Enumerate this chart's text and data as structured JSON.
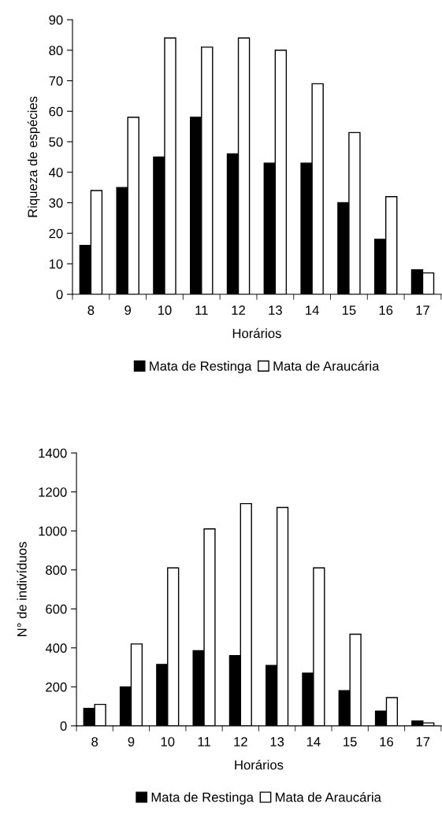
{
  "chart_data": [
    {
      "type": "bar",
      "xlabel": "Horários",
      "ylabel": "Riqueza de espécies",
      "categories": [
        "8",
        "9",
        "10",
        "11",
        "12",
        "13",
        "14",
        "15",
        "16",
        "17"
      ],
      "series": [
        {
          "name": "Mata de Restinga",
          "color": "#000000",
          "values": [
            16,
            35,
            45,
            58,
            46,
            43,
            43,
            30,
            18,
            8
          ]
        },
        {
          "name": "Mata de Araucária",
          "color": "#ffffff",
          "values": [
            34,
            58,
            84,
            81,
            84,
            80,
            69,
            53,
            32,
            7
          ]
        }
      ],
      "ylim": [
        0,
        90
      ],
      "yticks": [
        0,
        10,
        20,
        30,
        40,
        50,
        60,
        70,
        80,
        90
      ],
      "grid": false,
      "legend": "bottom"
    },
    {
      "type": "bar",
      "xlabel": "Horários",
      "ylabel": "N° de indivíduos",
      "categories": [
        "8",
        "9",
        "10",
        "11",
        "12",
        "13",
        "14",
        "15",
        "16",
        "17"
      ],
      "series": [
        {
          "name": "Mata de Restinga",
          "color": "#000000",
          "values": [
            90,
            200,
            315,
            385,
            360,
            310,
            270,
            180,
            75,
            25
          ]
        },
        {
          "name": "Mata de Araucária",
          "color": "#ffffff",
          "values": [
            110,
            420,
            810,
            1010,
            1140,
            1120,
            810,
            470,
            145,
            15
          ]
        }
      ],
      "ylim": [
        0,
        1400
      ],
      "yticks": [
        0,
        200,
        400,
        600,
        800,
        1000,
        1200,
        1400
      ],
      "grid": false,
      "legend": "bottom"
    }
  ]
}
